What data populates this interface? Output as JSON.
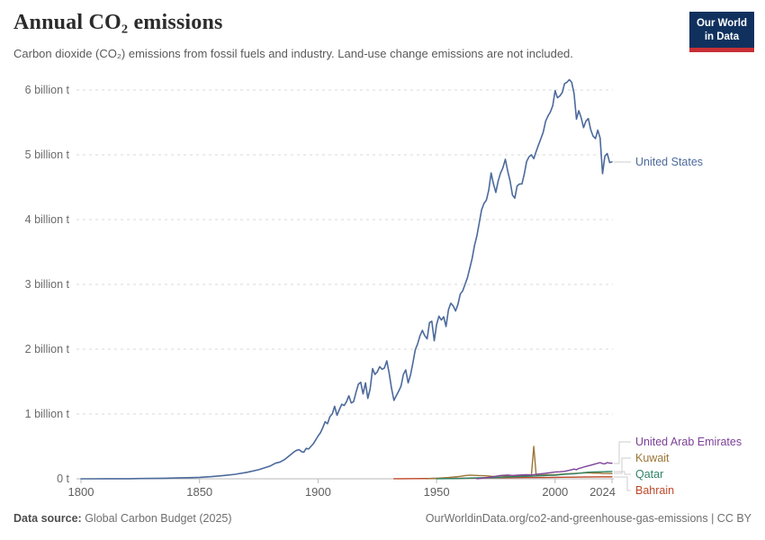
{
  "header": {
    "title": "Annual CO₂ emissions",
    "subtitle": "Carbon dioxide (CO₂) emissions from fossil fuels and industry. Land-use change emissions are not included.",
    "logo": {
      "line1": "Our World",
      "line2": "in Data",
      "bg_color": "#10315E",
      "accent_color": "#C72F35"
    }
  },
  "footer": {
    "source_label": "Data source:",
    "source_value": " Global Carbon Budget (2025)",
    "link": "OurWorldinData.org/co2-and-greenhouse-gas-emissions | CC BY"
  },
  "chart_data": {
    "type": "line",
    "title": "Annual CO₂ emissions",
    "unit": "billion tonnes of CO₂ per year",
    "xlabel": "",
    "ylabel": "",
    "xlim": [
      1800,
      2024
    ],
    "ylim": [
      0,
      6.3
    ],
    "grid": "horizontal-dashed",
    "legend_position": "right-edge-labels",
    "x_ticks": [
      1800,
      1850,
      1900,
      1950,
      2000,
      2024
    ],
    "y_ticks": [
      {
        "value": 0,
        "label": "0 t"
      },
      {
        "value": 1,
        "label": "1 billion t"
      },
      {
        "value": 2,
        "label": "2 billion t"
      },
      {
        "value": 3,
        "label": "3 billion t"
      },
      {
        "value": 4,
        "label": "4 billion t"
      },
      {
        "value": 5,
        "label": "5 billion t"
      },
      {
        "value": 6,
        "label": "6 billion t"
      }
    ],
    "series": [
      {
        "name": "United States",
        "color": "#4C6A9C",
        "points": [
          [
            1800,
            0.0003
          ],
          [
            1805,
            0.0005
          ],
          [
            1810,
            0.001
          ],
          [
            1815,
            0.0015
          ],
          [
            1820,
            0.002
          ],
          [
            1825,
            0.004
          ],
          [
            1830,
            0.006
          ],
          [
            1835,
            0.009
          ],
          [
            1840,
            0.013
          ],
          [
            1845,
            0.017
          ],
          [
            1850,
            0.022
          ],
          [
            1855,
            0.034
          ],
          [
            1860,
            0.05
          ],
          [
            1865,
            0.07
          ],
          [
            1870,
            0.1
          ],
          [
            1875,
            0.14
          ],
          [
            1880,
            0.2
          ],
          [
            1882,
            0.24
          ],
          [
            1884,
            0.26
          ],
          [
            1886,
            0.3
          ],
          [
            1888,
            0.36
          ],
          [
            1890,
            0.42
          ],
          [
            1891,
            0.44
          ],
          [
            1892,
            0.45
          ],
          [
            1893,
            0.42
          ],
          [
            1894,
            0.41
          ],
          [
            1895,
            0.47
          ],
          [
            1896,
            0.46
          ],
          [
            1897,
            0.5
          ],
          [
            1898,
            0.54
          ],
          [
            1899,
            0.6
          ],
          [
            1900,
            0.66
          ],
          [
            1901,
            0.71
          ],
          [
            1902,
            0.79
          ],
          [
            1903,
            0.88
          ],
          [
            1904,
            0.85
          ],
          [
            1905,
            0.96
          ],
          [
            1906,
            1.0
          ],
          [
            1907,
            1.12
          ],
          [
            1908,
            0.98
          ],
          [
            1909,
            1.07
          ],
          [
            1910,
            1.15
          ],
          [
            1911,
            1.13
          ],
          [
            1912,
            1.19
          ],
          [
            1913,
            1.28
          ],
          [
            1914,
            1.17
          ],
          [
            1915,
            1.19
          ],
          [
            1916,
            1.33
          ],
          [
            1917,
            1.46
          ],
          [
            1918,
            1.49
          ],
          [
            1919,
            1.31
          ],
          [
            1920,
            1.48
          ],
          [
            1921,
            1.24
          ],
          [
            1922,
            1.39
          ],
          [
            1923,
            1.7
          ],
          [
            1924,
            1.61
          ],
          [
            1925,
            1.65
          ],
          [
            1926,
            1.73
          ],
          [
            1927,
            1.69
          ],
          [
            1928,
            1.71
          ],
          [
            1929,
            1.82
          ],
          [
            1930,
            1.63
          ],
          [
            1931,
            1.4
          ],
          [
            1932,
            1.21
          ],
          [
            1933,
            1.28
          ],
          [
            1934,
            1.35
          ],
          [
            1935,
            1.43
          ],
          [
            1936,
            1.61
          ],
          [
            1937,
            1.68
          ],
          [
            1938,
            1.48
          ],
          [
            1939,
            1.6
          ],
          [
            1940,
            1.79
          ],
          [
            1941,
            1.99
          ],
          [
            1942,
            2.08
          ],
          [
            1943,
            2.21
          ],
          [
            1944,
            2.29
          ],
          [
            1945,
            2.21
          ],
          [
            1946,
            2.16
          ],
          [
            1947,
            2.41
          ],
          [
            1948,
            2.43
          ],
          [
            1949,
            2.13
          ],
          [
            1950,
            2.38
          ],
          [
            1951,
            2.51
          ],
          [
            1952,
            2.45
          ],
          [
            1953,
            2.5
          ],
          [
            1954,
            2.35
          ],
          [
            1955,
            2.61
          ],
          [
            1956,
            2.71
          ],
          [
            1957,
            2.67
          ],
          [
            1958,
            2.59
          ],
          [
            1959,
            2.69
          ],
          [
            1960,
            2.85
          ],
          [
            1961,
            2.9
          ],
          [
            1962,
            3.0
          ],
          [
            1963,
            3.1
          ],
          [
            1964,
            3.25
          ],
          [
            1965,
            3.4
          ],
          [
            1966,
            3.6
          ],
          [
            1967,
            3.75
          ],
          [
            1968,
            3.95
          ],
          [
            1969,
            4.15
          ],
          [
            1970,
            4.25
          ],
          [
            1971,
            4.3
          ],
          [
            1972,
            4.45
          ],
          [
            1973,
            4.72
          ],
          [
            1974,
            4.55
          ],
          [
            1975,
            4.42
          ],
          [
            1976,
            4.6
          ],
          [
            1977,
            4.72
          ],
          [
            1978,
            4.8
          ],
          [
            1979,
            4.93
          ],
          [
            1980,
            4.75
          ],
          [
            1981,
            4.6
          ],
          [
            1982,
            4.38
          ],
          [
            1983,
            4.33
          ],
          [
            1984,
            4.52
          ],
          [
            1985,
            4.55
          ],
          [
            1986,
            4.55
          ],
          [
            1987,
            4.7
          ],
          [
            1988,
            4.9
          ],
          [
            1989,
            4.97
          ],
          [
            1990,
            5.0
          ],
          [
            1991,
            4.94
          ],
          [
            1992,
            5.05
          ],
          [
            1993,
            5.15
          ],
          [
            1994,
            5.25
          ],
          [
            1995,
            5.35
          ],
          [
            1996,
            5.52
          ],
          [
            1997,
            5.6
          ],
          [
            1998,
            5.66
          ],
          [
            1999,
            5.76
          ],
          [
            2000,
            5.99
          ],
          [
            2001,
            5.88
          ],
          [
            2002,
            5.91
          ],
          [
            2003,
            5.96
          ],
          [
            2004,
            6.1
          ],
          [
            2005,
            6.12
          ],
          [
            2006,
            6.16
          ],
          [
            2007,
            6.12
          ],
          [
            2008,
            5.94
          ],
          [
            2009,
            5.55
          ],
          [
            2010,
            5.68
          ],
          [
            2011,
            5.57
          ],
          [
            2012,
            5.42
          ],
          [
            2013,
            5.52
          ],
          [
            2014,
            5.56
          ],
          [
            2015,
            5.39
          ],
          [
            2016,
            5.29
          ],
          [
            2017,
            5.25
          ],
          [
            2018,
            5.38
          ],
          [
            2019,
            5.26
          ],
          [
            2020,
            4.71
          ],
          [
            2021,
            4.98
          ],
          [
            2022,
            5.02
          ],
          [
            2023,
            4.88
          ],
          [
            2024,
            4.89
          ]
        ]
      },
      {
        "name": "Bahrain",
        "color": "#BE4728",
        "points": [
          [
            1932,
            0.001
          ],
          [
            1935,
            0.002
          ],
          [
            1940,
            0.003
          ],
          [
            1945,
            0.004
          ],
          [
            1950,
            0.005
          ],
          [
            1955,
            0.006
          ],
          [
            1960,
            0.008
          ],
          [
            1965,
            0.01
          ],
          [
            1970,
            0.013
          ],
          [
            1975,
            0.015
          ],
          [
            1980,
            0.017
          ],
          [
            1985,
            0.018
          ],
          [
            1990,
            0.019
          ],
          [
            1995,
            0.02
          ],
          [
            2000,
            0.022
          ],
          [
            2005,
            0.025
          ],
          [
            2010,
            0.027
          ],
          [
            2015,
            0.029
          ],
          [
            2020,
            0.03
          ],
          [
            2024,
            0.031
          ]
        ]
      },
      {
        "name": "Kuwait",
        "color": "#9B7536",
        "points": [
          [
            1946,
            0.002
          ],
          [
            1948,
            0.005
          ],
          [
            1950,
            0.009
          ],
          [
            1952,
            0.013
          ],
          [
            1955,
            0.02
          ],
          [
            1958,
            0.03
          ],
          [
            1960,
            0.038
          ],
          [
            1962,
            0.05
          ],
          [
            1964,
            0.057
          ],
          [
            1966,
            0.053
          ],
          [
            1968,
            0.05
          ],
          [
            1970,
            0.047
          ],
          [
            1972,
            0.042
          ],
          [
            1974,
            0.036
          ],
          [
            1976,
            0.042
          ],
          [
            1978,
            0.047
          ],
          [
            1980,
            0.04
          ],
          [
            1982,
            0.032
          ],
          [
            1984,
            0.042
          ],
          [
            1986,
            0.047
          ],
          [
            1988,
            0.05
          ],
          [
            1990,
            0.052
          ],
          [
            1991,
            0.5
          ],
          [
            1992,
            0.062
          ],
          [
            1993,
            0.054
          ],
          [
            1995,
            0.06
          ],
          [
            1997,
            0.062
          ],
          [
            2000,
            0.064
          ],
          [
            2003,
            0.072
          ],
          [
            2005,
            0.078
          ],
          [
            2008,
            0.082
          ],
          [
            2010,
            0.086
          ],
          [
            2012,
            0.09
          ],
          [
            2014,
            0.093
          ],
          [
            2016,
            0.088
          ],
          [
            2018,
            0.09
          ],
          [
            2020,
            0.084
          ],
          [
            2022,
            0.082
          ],
          [
            2024,
            0.08
          ]
        ]
      },
      {
        "name": "Qatar",
        "color": "#2F8567",
        "points": [
          [
            1950,
            0.001
          ],
          [
            1955,
            0.003
          ],
          [
            1960,
            0.006
          ],
          [
            1965,
            0.012
          ],
          [
            1970,
            0.016
          ],
          [
            1975,
            0.018
          ],
          [
            1980,
            0.03
          ],
          [
            1985,
            0.033
          ],
          [
            1990,
            0.04
          ],
          [
            1993,
            0.046
          ],
          [
            1995,
            0.048
          ],
          [
            1997,
            0.053
          ],
          [
            2000,
            0.056
          ],
          [
            2003,
            0.066
          ],
          [
            2005,
            0.072
          ],
          [
            2008,
            0.078
          ],
          [
            2010,
            0.086
          ],
          [
            2012,
            0.095
          ],
          [
            2014,
            0.102
          ],
          [
            2016,
            0.105
          ],
          [
            2018,
            0.107
          ],
          [
            2020,
            0.109
          ],
          [
            2022,
            0.111
          ],
          [
            2024,
            0.113
          ]
        ]
      },
      {
        "name": "United Arab Emirates",
        "color": "#7C4198",
        "points": [
          [
            1967,
            0.002
          ],
          [
            1970,
            0.013
          ],
          [
            1972,
            0.022
          ],
          [
            1975,
            0.038
          ],
          [
            1977,
            0.052
          ],
          [
            1980,
            0.058
          ],
          [
            1982,
            0.052
          ],
          [
            1985,
            0.058
          ],
          [
            1988,
            0.063
          ],
          [
            1990,
            0.058
          ],
          [
            1992,
            0.068
          ],
          [
            1995,
            0.08
          ],
          [
            1998,
            0.095
          ],
          [
            2000,
            0.105
          ],
          [
            2002,
            0.108
          ],
          [
            2004,
            0.115
          ],
          [
            2006,
            0.13
          ],
          [
            2008,
            0.15
          ],
          [
            2009,
            0.14
          ],
          [
            2010,
            0.16
          ],
          [
            2011,
            0.17
          ],
          [
            2012,
            0.18
          ],
          [
            2013,
            0.19
          ],
          [
            2014,
            0.2
          ],
          [
            2015,
            0.21
          ],
          [
            2016,
            0.22
          ],
          [
            2017,
            0.23
          ],
          [
            2018,
            0.24
          ],
          [
            2019,
            0.25
          ],
          [
            2020,
            0.235
          ],
          [
            2021,
            0.23
          ],
          [
            2022,
            0.25
          ],
          [
            2023,
            0.242
          ],
          [
            2024,
            0.24
          ]
        ]
      }
    ]
  }
}
